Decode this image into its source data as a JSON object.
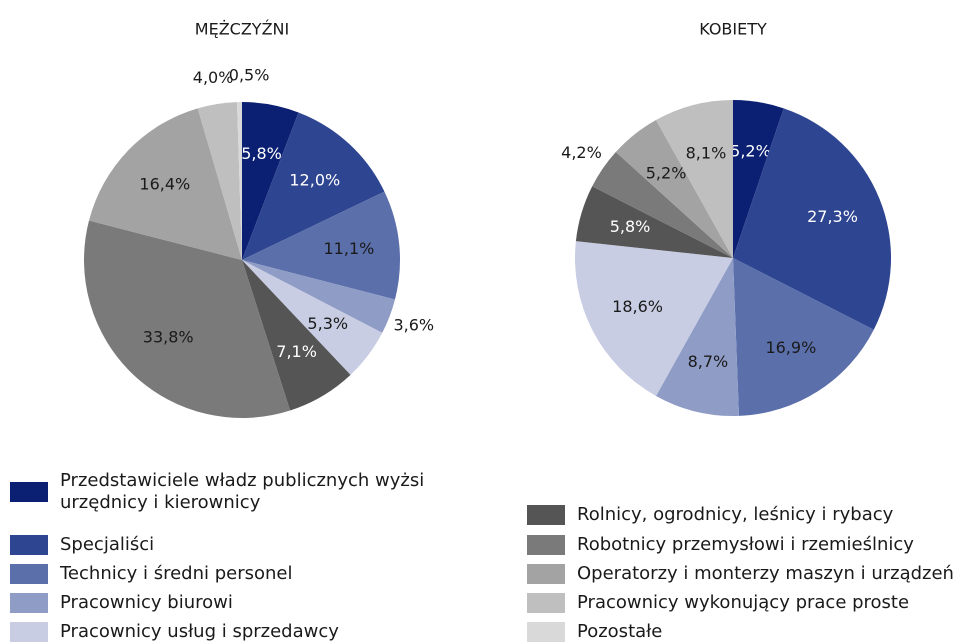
{
  "chart_data": [
    {
      "type": "pie",
      "title": "MĘŻCZYŹNI",
      "categories": [
        "Przedstawiciele władz publicznych wyżsi urzędnicy i kierownicy",
        "Specjaliści",
        "Technicy i średni personel",
        "Pracownicy biurowi",
        "Pracownicy usług i sprzedawcy",
        "Rolnicy, ogrodnicy, leśnicy i rybacy",
        "Robotnicy przemysłowi i rzemieślnicy",
        "Operatorzy i monterzy maszyn i urządzeń",
        "Pracownicy wykonujący prace proste",
        "Pozostałe"
      ],
      "values": [
        5.8,
        12.0,
        11.1,
        3.6,
        5.3,
        7.1,
        33.8,
        16.4,
        4.0,
        0.5
      ],
      "value_labels": [
        "5,8%",
        "12,0%",
        "11,1%",
        "3,6%",
        "5,3%",
        "7,1%",
        "33,8%",
        "16,4%",
        "4,0%",
        "0,5%"
      ],
      "colors": [
        "#0b1f73",
        "#2e4591",
        "#5b6fab",
        "#8f9cc6",
        "#c8cde3",
        "#555555",
        "#7a7a7a",
        "#a3a3a3",
        "#bfbfbf",
        "#d9d9d9"
      ]
    },
    {
      "type": "pie",
      "title": "KOBIETY",
      "categories": [
        "Przedstawiciele władz publicznych wyżsi urzędnicy i kierownicy",
        "Specjaliści",
        "Technicy i średni personel",
        "Pracownicy biurowi",
        "Pracownicy usług i sprzedawcy",
        "Rolnicy, ogrodnicy, leśnicy i rybacy",
        "Robotnicy przemysłowi i rzemieślnicy",
        "Operatorzy i monterzy maszyn i urządzeń",
        "Pracownicy wykonujący prace proste",
        "Pozostałe"
      ],
      "values": [
        5.2,
        27.3,
        16.9,
        8.7,
        18.6,
        5.8,
        4.2,
        5.2,
        8.1,
        null
      ],
      "value_labels": [
        "5,2%",
        "27,3%",
        "16,9%",
        "8,7%",
        "18,6%",
        "5,8%",
        "4,2%",
        "5,2%",
        "8,1%",
        null
      ],
      "colors": [
        "#0b1f73",
        "#2e4591",
        "#5b6fab",
        "#8f9cc6",
        "#c8cde3",
        "#555555",
        "#7a7a7a",
        "#a3a3a3",
        "#bfbfbf",
        "#d9d9d9"
      ]
    }
  ]
}
